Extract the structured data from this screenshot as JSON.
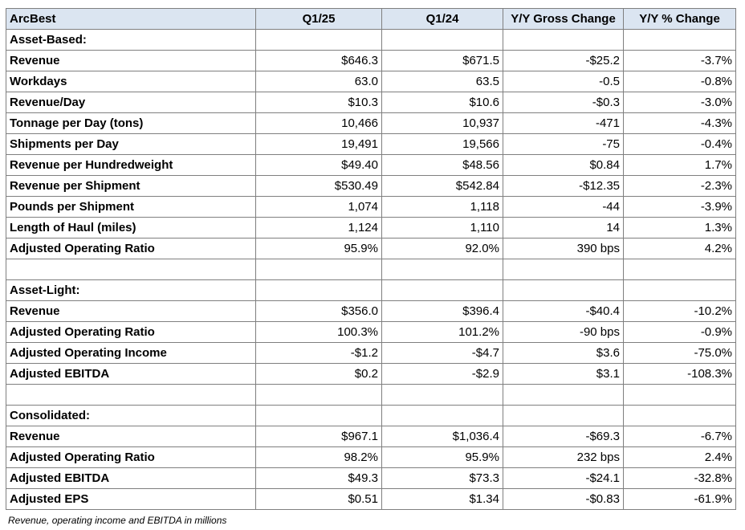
{
  "table": {
    "headers": [
      "ArcBest",
      "Q1/25",
      "Q1/24",
      "Y/Y Gross Change",
      "Y/Y % Change"
    ],
    "rows": [
      {
        "type": "section",
        "label": "Asset-Based:"
      },
      {
        "type": "data",
        "cells": [
          "Revenue",
          "$646.3",
          "$671.5",
          "-$25.2",
          "-3.7%"
        ]
      },
      {
        "type": "data",
        "cells": [
          "Workdays",
          "63.0",
          "63.5",
          "-0.5",
          "-0.8%"
        ]
      },
      {
        "type": "data",
        "cells": [
          "Revenue/Day",
          "$10.3",
          "$10.6",
          "-$0.3",
          "-3.0%"
        ]
      },
      {
        "type": "data",
        "cells": [
          "Tonnage per Day (tons)",
          "10,466",
          "10,937",
          "-471",
          "-4.3%"
        ]
      },
      {
        "type": "data",
        "cells": [
          "Shipments per Day",
          "19,491",
          "19,566",
          "-75",
          "-0.4%"
        ]
      },
      {
        "type": "data",
        "cells": [
          "Revenue per Hundredweight",
          "$49.40",
          "$48.56",
          "$0.84",
          "1.7%"
        ]
      },
      {
        "type": "data",
        "cells": [
          "Revenue per Shipment",
          "$530.49",
          "$542.84",
          "-$12.35",
          "-2.3%"
        ]
      },
      {
        "type": "data",
        "cells": [
          "Pounds per Shipment",
          "1,074",
          "1,118",
          "-44",
          "-3.9%"
        ]
      },
      {
        "type": "data",
        "cells": [
          "Length of Haul (miles)",
          "1,124",
          "1,110",
          "14",
          "1.3%"
        ]
      },
      {
        "type": "data",
        "cells": [
          "Adjusted Operating Ratio",
          "95.9%",
          "92.0%",
          "390 bps",
          "4.2%"
        ]
      },
      {
        "type": "blank"
      },
      {
        "type": "section",
        "label": "Asset-Light:"
      },
      {
        "type": "data",
        "cells": [
          "Revenue",
          "$356.0",
          "$396.4",
          "-$40.4",
          "-10.2%"
        ]
      },
      {
        "type": "data",
        "cells": [
          "Adjusted Operating Ratio",
          "100.3%",
          "101.2%",
          "-90 bps",
          "-0.9%"
        ]
      },
      {
        "type": "data",
        "cells": [
          "Adjusted Operating Income",
          "-$1.2",
          "-$4.7",
          "$3.6",
          "-75.0%"
        ]
      },
      {
        "type": "data",
        "cells": [
          "Adjusted EBITDA",
          "$0.2",
          "-$2.9",
          "$3.1",
          "-108.3%"
        ]
      },
      {
        "type": "blank"
      },
      {
        "type": "section",
        "label": "Consolidated:"
      },
      {
        "type": "data",
        "cells": [
          "Revenue",
          "$967.1",
          "$1,036.4",
          "-$69.3",
          "-6.7%"
        ]
      },
      {
        "type": "data",
        "cells": [
          "Adjusted Operating Ratio",
          "98.2%",
          "95.9%",
          "232 bps",
          "2.4%"
        ]
      },
      {
        "type": "data",
        "cells": [
          "Adjusted EBITDA",
          "$49.3",
          "$73.3",
          "-$24.1",
          "-32.8%"
        ]
      },
      {
        "type": "data",
        "cells": [
          "Adjusted EPS",
          "$0.51",
          "$1.34",
          "-$0.83",
          "-61.9%"
        ]
      }
    ]
  },
  "footnote": "Revenue, operating income and EBITDA in millions"
}
